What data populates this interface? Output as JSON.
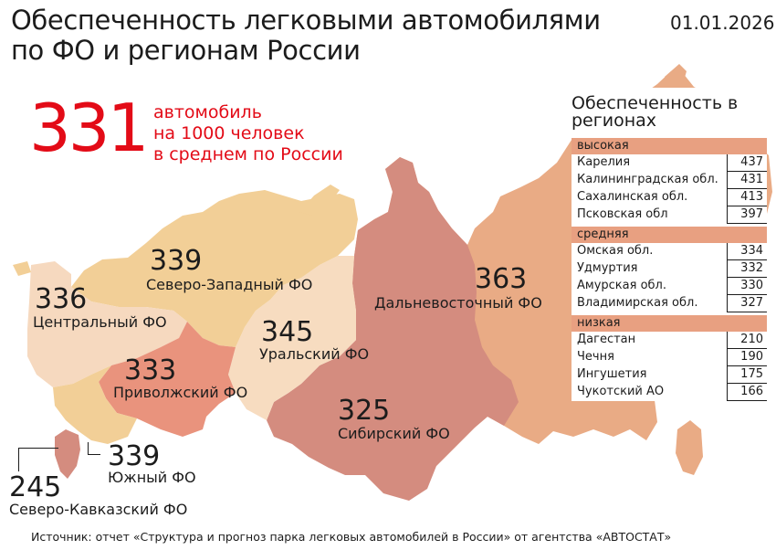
{
  "header": {
    "title_line1": "Обеспеченность легковыми автомобилями",
    "title_line2": "по ФО и регионам России",
    "date": "01.01.2026"
  },
  "summary": {
    "value": "331",
    "text_line1": "автомобиль",
    "text_line2": "на 1000 человек",
    "text_line3": "в среднем по России"
  },
  "districts": {
    "northwest": {
      "value": "339",
      "name": "Северо-Западный ФО",
      "color": "#f2cf97"
    },
    "central": {
      "value": "336",
      "name": "Центральный ФО",
      "color": "#f6d9bf"
    },
    "volga": {
      "value": "333",
      "name": "Приволжский ФО",
      "color": "#e9937d"
    },
    "ural": {
      "value": "345",
      "name": "Уральский ФО",
      "color": "#f7dcc0"
    },
    "siberia": {
      "value": "325",
      "name": "Сибирский ФО",
      "color": "#d48c7f"
    },
    "fareast": {
      "value": "363",
      "name": "Дальневосточный ФО",
      "color": "#e9ab85"
    },
    "south": {
      "value": "339",
      "name": "Южный ФО",
      "color": "#f2cf97"
    },
    "caucasus": {
      "value": "245",
      "name": "Северо-Кавказский ФО",
      "color": "#d48c7f"
    }
  },
  "regions_panel": {
    "title_line1": "Обеспеченность в",
    "title_line2": "регионах",
    "header_color": "#e8a081",
    "groups": [
      {
        "label": "высокая",
        "rows": [
          {
            "name": "Карелия",
            "value": "437"
          },
          {
            "name": "Калининградская обл.",
            "value": "431"
          },
          {
            "name": "Сахалинская обл.",
            "value": "413"
          },
          {
            "name": "Псковская обл",
            "value": "397"
          }
        ]
      },
      {
        "label": "средняя",
        "rows": [
          {
            "name": "Омская обл.",
            "value": "334"
          },
          {
            "name": "Удмуртия",
            "value": "332"
          },
          {
            "name": "Амурская обл.",
            "value": "330"
          },
          {
            "name": "Владимирская обл.",
            "value": "327"
          }
        ]
      },
      {
        "label": "низкая",
        "rows": [
          {
            "name": "Дагестан",
            "value": "210"
          },
          {
            "name": "Чечня",
            "value": "190"
          },
          {
            "name": "Ингушетия",
            "value": "175"
          },
          {
            "name": "Чукотский АО",
            "value": "166"
          }
        ]
      }
    ]
  },
  "source": "Источник: отчет «Структура и прогноз парка легковых автомобилей в России» от агентства «АВТОСТАТ»"
}
